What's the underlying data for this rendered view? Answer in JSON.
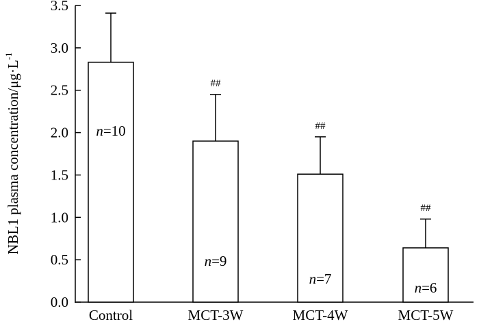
{
  "chart_data": {
    "type": "bar",
    "title": "",
    "xlabel": "",
    "ylabel": "NBL1 plasma concentration/μg·L",
    "ylabel_superscript": "-1",
    "ylim": [
      0,
      3.5
    ],
    "yticks": [
      "0.0",
      "0.5",
      "1.0",
      "1.5",
      "2.0",
      "2.5",
      "3.0",
      "3.5"
    ],
    "categories": [
      "Control",
      "MCT-3W",
      "MCT-4W",
      "MCT-5W"
    ],
    "values": [
      2.83,
      1.9,
      1.51,
      0.64
    ],
    "errors": [
      0.58,
      0.55,
      0.44,
      0.34
    ],
    "n_labels": [
      {
        "italic": "n",
        "text": "=10"
      },
      {
        "italic": "n",
        "text": "=9"
      },
      {
        "italic": "n",
        "text": "=7"
      },
      {
        "italic": "n",
        "text": "=6"
      }
    ],
    "significance": [
      "",
      "##",
      "##",
      "##"
    ]
  }
}
